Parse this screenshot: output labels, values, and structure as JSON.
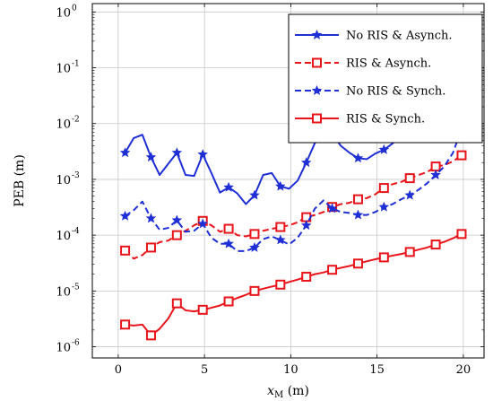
{
  "chart_data": {
    "type": "line",
    "title": "",
    "xlabel": "x",
    "xlabel_sub": "M",
    "xlabel_unit": " (m)",
    "ylabel": "PEB (m)",
    "xlim": [
      -1.5,
      21.2
    ],
    "ylim_exp": [
      -6.2,
      0
    ],
    "yscale": "log",
    "xticks": [
      0,
      5,
      10,
      15,
      20
    ],
    "yticks_exp": [
      -6,
      -5,
      -4,
      -3,
      -2,
      -1,
      0
    ],
    "ytick_base": "10",
    "grid": true,
    "legend_position": "top-right",
    "series": [
      {
        "name": "No RIS & Asynch.",
        "color": "#1f2fd6",
        "dash": "solid",
        "marker": "star",
        "x": [
          0.4,
          0.9,
          1.4,
          1.9,
          2.4,
          2.9,
          3.4,
          3.9,
          4.4,
          4.9,
          5.4,
          5.9,
          6.4,
          6.9,
          7.4,
          7.9,
          8.4,
          8.9,
          9.4,
          9.9,
          10.4,
          10.9,
          11.4,
          11.9,
          12.4,
          12.9,
          13.4,
          13.9,
          14.4,
          14.9,
          15.4,
          15.9,
          16.4,
          16.9,
          17.4,
          17.9,
          18.4
        ],
        "y": [
          0.003,
          0.0055,
          0.0063,
          0.0025,
          0.0012,
          0.0019,
          0.003,
          0.0012,
          0.00115,
          0.0028,
          0.0013,
          0.00058,
          0.00072,
          0.00056,
          0.00036,
          0.00052,
          0.0012,
          0.0013,
          0.00075,
          0.00068,
          0.00095,
          0.002,
          0.0045,
          0.007,
          0.0065,
          0.004,
          0.003,
          0.0024,
          0.0023,
          0.0029,
          0.0034,
          0.0044,
          0.006,
          0.008,
          0.0095,
          0.0105,
          0.0115
        ],
        "markers_x": [
          0.4,
          1.9,
          3.4,
          4.9,
          6.4,
          7.9,
          9.4,
          10.9,
          12.4,
          13.9,
          15.4,
          16.9
        ]
      },
      {
        "name": "RIS & Asynch.",
        "color": "#e8141a",
        "dash": "dashed",
        "marker": "square",
        "x": [
          0.4,
          0.9,
          1.4,
          1.9,
          2.4,
          2.9,
          3.4,
          3.9,
          4.4,
          4.9,
          5.4,
          5.9,
          6.4,
          6.9,
          7.4,
          7.9,
          8.4,
          8.9,
          9.4,
          9.9,
          10.4,
          10.9,
          11.4,
          11.9,
          12.4,
          12.9,
          13.4,
          13.9,
          14.4,
          14.9,
          15.4,
          15.9,
          16.4,
          16.9,
          17.4,
          17.9,
          18.4,
          18.9,
          19.4,
          19.9
        ],
        "y": [
          5.3e-05,
          3.8e-05,
          4.4e-05,
          6e-05,
          7.5e-05,
          8e-05,
          0.0001,
          0.00012,
          0.00015,
          0.00018,
          0.00015,
          0.000115,
          0.00013,
          0.0001,
          9.5e-05,
          0.000105,
          0.00012,
          0.00013,
          0.00014,
          0.00015,
          0.00017,
          0.00021,
          0.00023,
          0.00026,
          0.00032,
          0.00036,
          0.00038,
          0.00044,
          0.00046,
          0.00054,
          0.0007,
          0.00082,
          0.0009,
          0.00105,
          0.0012,
          0.00135,
          0.0017,
          0.0018,
          0.0021,
          0.0027
        ],
        "markers_x": [
          0.4,
          1.9,
          3.4,
          4.9,
          6.4,
          7.9,
          9.4,
          10.9,
          12.4,
          13.9,
          15.4,
          16.9,
          18.4,
          19.9
        ]
      },
      {
        "name": "No RIS & Synch.",
        "color": "#1f2fd6",
        "dash": "dashed",
        "marker": "star",
        "x": [
          0.4,
          0.9,
          1.4,
          1.9,
          2.4,
          2.9,
          3.4,
          3.9,
          4.4,
          4.9,
          5.4,
          5.9,
          6.4,
          6.9,
          7.4,
          7.9,
          8.4,
          8.9,
          9.4,
          9.9,
          10.4,
          10.9,
          11.4,
          11.9,
          12.4,
          12.9,
          13.4,
          13.9,
          14.4,
          14.9,
          15.4,
          15.9,
          16.4,
          16.9,
          17.4,
          17.9,
          18.4,
          18.9,
          19.4,
          19.9
        ],
        "y": [
          0.00022,
          0.00028,
          0.0004,
          0.0002,
          0.000125,
          0.000135,
          0.000185,
          0.000115,
          0.00012,
          0.00016,
          9e-05,
          7e-05,
          7e-05,
          5.2e-05,
          5.2e-05,
          6e-05,
          8.5e-05,
          9.5e-05,
          8.2e-05,
          6.8e-05,
          9e-05,
          0.00015,
          0.0003,
          0.00042,
          0.0003,
          0.00026,
          0.00025,
          0.00023,
          0.00023,
          0.00026,
          0.00032,
          0.00036,
          0.00044,
          0.00052,
          0.00065,
          0.00085,
          0.0012,
          0.0017,
          0.003,
          0.008
        ],
        "markers_x": [
          0.4,
          1.9,
          3.4,
          4.9,
          6.4,
          7.9,
          9.4,
          10.9,
          12.4,
          13.9,
          15.4,
          16.9,
          18.4,
          19.9
        ]
      },
      {
        "name": "RIS & Synch.",
        "color": "#e8141a",
        "dash": "solid",
        "marker": "square",
        "x": [
          0.4,
          0.9,
          1.4,
          1.9,
          2.4,
          2.9,
          3.4,
          3.9,
          4.4,
          4.9,
          5.4,
          5.9,
          6.4,
          6.9,
          7.4,
          7.9,
          8.4,
          8.9,
          9.4,
          9.9,
          10.4,
          10.9,
          11.4,
          11.9,
          12.4,
          12.9,
          13.4,
          13.9,
          14.4,
          14.9,
          15.4,
          15.9,
          16.4,
          16.9,
          17.4,
          17.9,
          18.4,
          18.9,
          19.4,
          19.9
        ],
        "y": [
          2.5e-06,
          2.4e-06,
          2.5e-06,
          1.6e-06,
          2.1e-06,
          3.2e-06,
          6e-06,
          4.5e-06,
          4.3e-06,
          4.6e-06,
          5e-06,
          5.5e-06,
          6.5e-06,
          7.5e-06,
          8.5e-06,
          1e-05,
          1.1e-05,
          1.2e-05,
          1.3e-05,
          1.45e-05,
          1.6e-05,
          1.8e-05,
          2e-05,
          2.15e-05,
          2.4e-05,
          2.6e-05,
          2.8e-05,
          3.1e-05,
          3.4e-05,
          3.7e-05,
          4e-05,
          4.3e-05,
          4.6e-05,
          5e-05,
          5.5e-05,
          6e-05,
          6.8e-05,
          7.6e-05,
          8.8e-05,
          0.000105
        ],
        "markers_x": [
          0.4,
          1.9,
          3.4,
          4.9,
          6.4,
          7.9,
          9.4,
          10.9,
          12.4,
          13.9,
          15.4,
          16.9,
          18.4,
          19.9
        ]
      }
    ]
  }
}
